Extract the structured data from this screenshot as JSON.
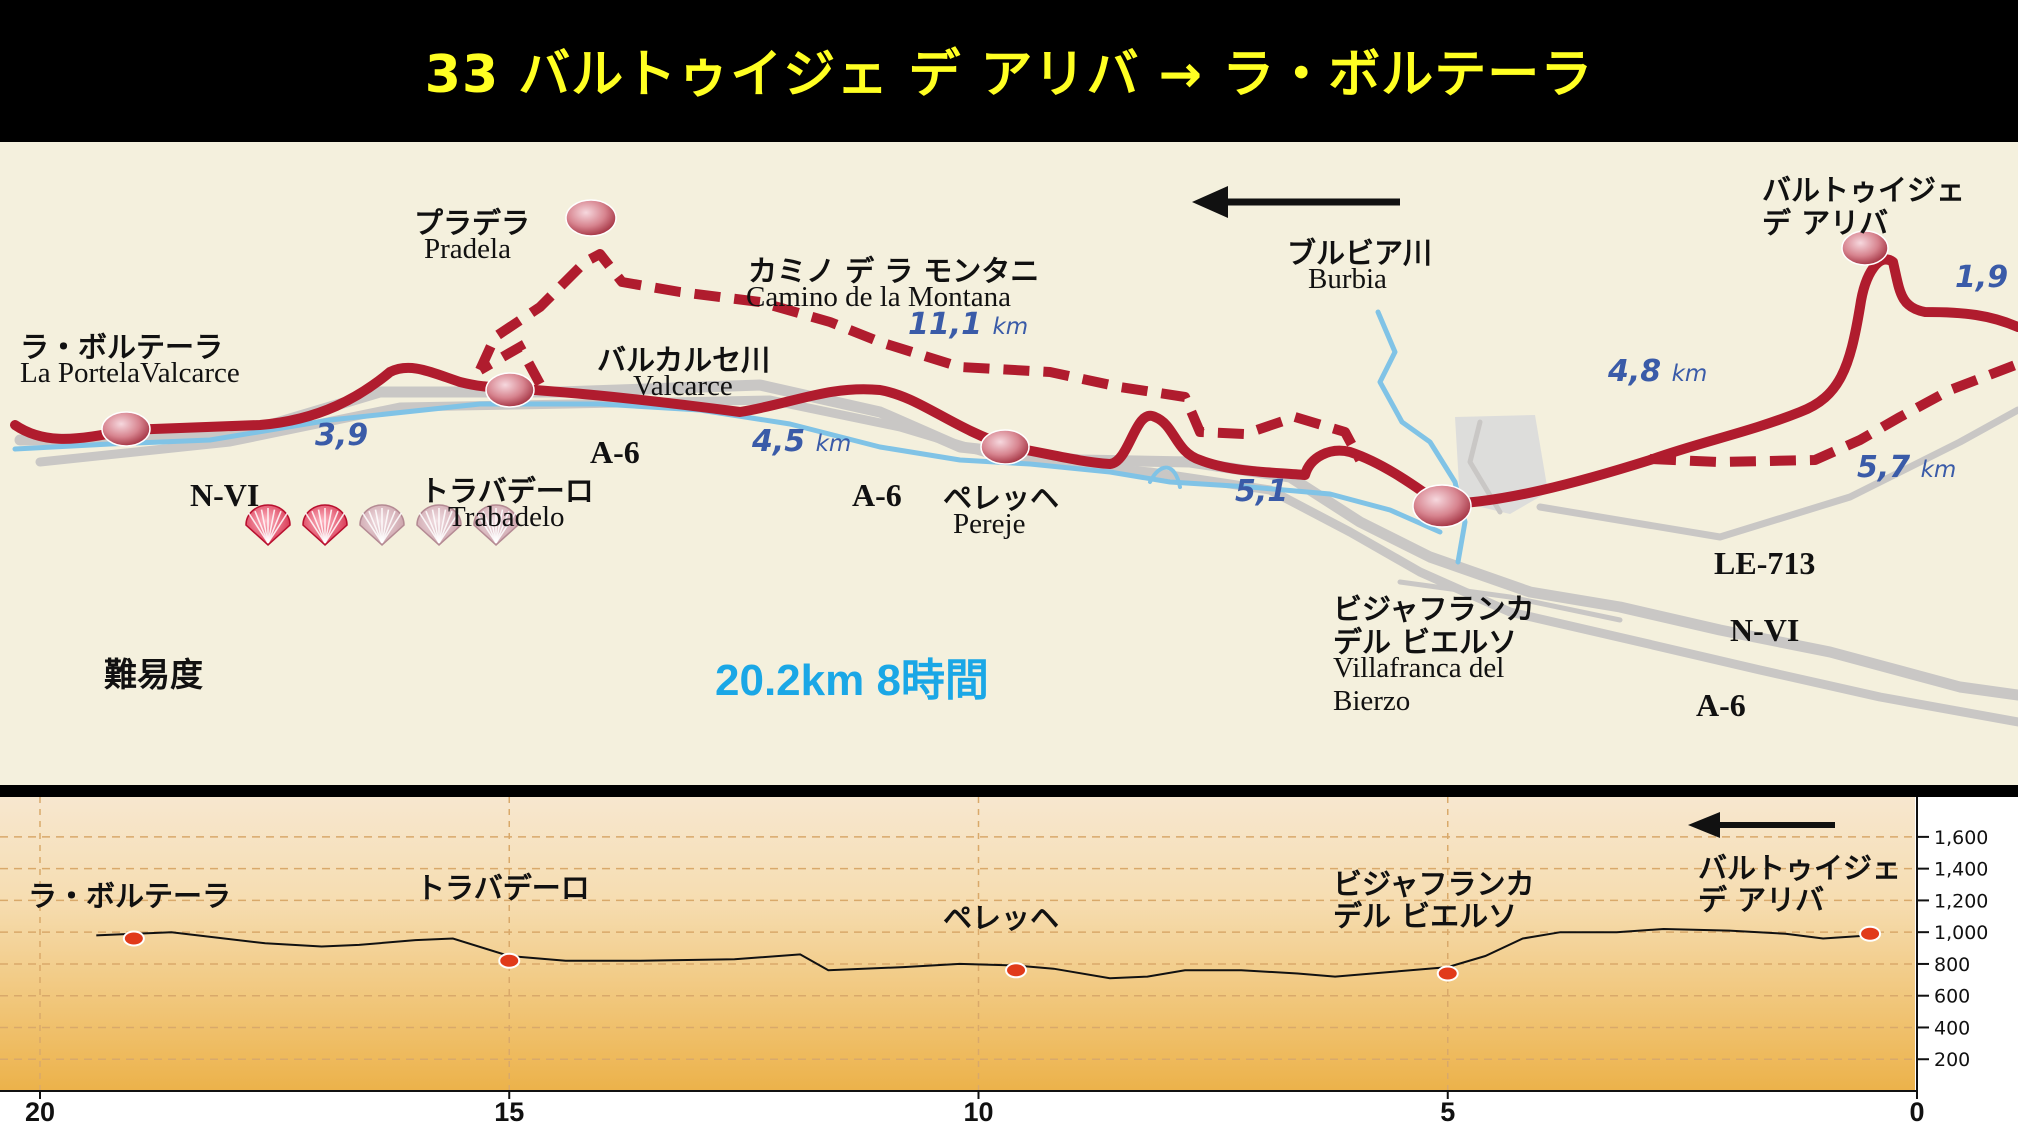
{
  "title": "33 バルトゥイジェ デ アリバ → ラ・ボルテーラ",
  "map": {
    "places": {
      "portela": {
        "jp": "ラ・ボルテーラ",
        "lat": "La PortelaValcarce"
      },
      "pradela": {
        "jp": "プラデラ",
        "lat": "Pradela"
      },
      "montana": {
        "jp": "カミノ デ ラ モンタニ",
        "lat": "Camino de la Montana"
      },
      "valcarce": {
        "jp": "バルカルセ川",
        "lat": "Valcarce"
      },
      "trabadelo": {
        "jp": "トラバデーロ",
        "lat": "Trabadelo"
      },
      "pereje": {
        "jp": "ペレッヘ",
        "lat": "Pereje"
      },
      "burbia": {
        "jp": "ブルビア川",
        "lat": "Burbia"
      },
      "arriba": {
        "jp1": "バルトゥイジェ",
        "jp2": "デ アリバ"
      },
      "villafranca": {
        "jp1": "ビジャフランカ",
        "jp2": "デル ビエルソ",
        "lat1": "Villafranca del",
        "lat2": "Bierzo"
      }
    },
    "roads": {
      "nvi_left": "N-VI",
      "a6_a": "A-6",
      "a6_b": "A-6",
      "le713": "LE-713",
      "nvi_right": "N-VI",
      "a6_right": "A-6"
    },
    "distances": {
      "d1": {
        "num": "3,9",
        "unit": ""
      },
      "d2": {
        "num": "4,5",
        "unit": "km"
      },
      "d3": {
        "num": "11,1",
        "unit": "km"
      },
      "d4": {
        "num": "5,1",
        "unit": ""
      },
      "d5": {
        "num": "4,8",
        "unit": "km"
      },
      "d6": {
        "num": "5,7",
        "unit": "km"
      },
      "d7": {
        "num": "1,9",
        "unit": ""
      }
    },
    "difficulty": {
      "label": "難易度",
      "level": 2,
      "max": 5
    },
    "total": "20.2km 8時間",
    "colors": {
      "route": "#b01c2e",
      "river": "#80c3e6",
      "road": "#c9c7c5",
      "distance": "#3a5ba8",
      "total": "#1aa7e6"
    }
  },
  "profile": {
    "labels": {
      "portela": "ラ・ボルテーラ",
      "trabadelo": "トラバデーロ",
      "pereje": "ペレッヘ",
      "villafranca1": "ビジャフランカ",
      "villafranca2": "デル ビエルソ",
      "arriba1": "バルトゥイジェ",
      "arriba2": "デ アリバ"
    },
    "x_ticks": [
      "20",
      "15",
      "10",
      "5",
      "0"
    ],
    "y_ticks": [
      "1,600",
      "1,400",
      "1,200",
      "1,000",
      "800",
      "600",
      "400",
      "200"
    ],
    "elevation": [
      [
        19.4,
        980
      ],
      [
        18.6,
        1000
      ],
      [
        17.6,
        930
      ],
      [
        17.0,
        910
      ],
      [
        16.6,
        920
      ],
      [
        16.0,
        950
      ],
      [
        15.6,
        960
      ],
      [
        15.0,
        850
      ],
      [
        14.4,
        820
      ],
      [
        13.6,
        820
      ],
      [
        12.6,
        830
      ],
      [
        11.9,
        860
      ],
      [
        11.6,
        760
      ],
      [
        10.8,
        780
      ],
      [
        10.2,
        800
      ],
      [
        9.6,
        790
      ],
      [
        9.2,
        770
      ],
      [
        8.6,
        710
      ],
      [
        8.2,
        720
      ],
      [
        7.8,
        760
      ],
      [
        7.2,
        760
      ],
      [
        6.6,
        740
      ],
      [
        6.2,
        720
      ],
      [
        5.6,
        750
      ],
      [
        5.0,
        780
      ],
      [
        4.6,
        850
      ],
      [
        4.2,
        960
      ],
      [
        3.8,
        1000
      ],
      [
        3.2,
        1000
      ],
      [
        2.7,
        1020
      ],
      [
        2.0,
        1010
      ],
      [
        1.4,
        990
      ],
      [
        1.0,
        960
      ],
      [
        0.5,
        980
      ]
    ],
    "stops": [
      {
        "km": 19.0,
        "elev": 960
      },
      {
        "km": 15.0,
        "elev": 820
      },
      {
        "km": 9.6,
        "elev": 760
      },
      {
        "km": 5.0,
        "elev": 740
      },
      {
        "km": 0.5,
        "elev": 990
      }
    ]
  }
}
